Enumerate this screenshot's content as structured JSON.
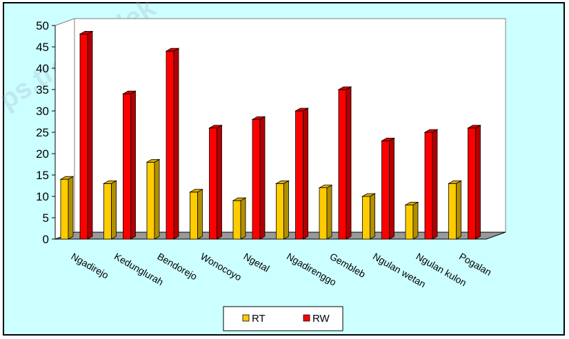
{
  "chart_data": {
    "type": "bar",
    "categories": [
      "Ngadirejo",
      "Kedunglurah",
      "Bendorejo",
      "Wonocoyo",
      "Ngetal",
      "Ngadirenggo",
      "Gembleb",
      "Ngulan wetan",
      "Ngulan kulon",
      "Pogalan"
    ],
    "series": [
      {
        "name": "RT",
        "values": [
          14,
          13,
          18,
          11,
          9,
          13,
          12,
          10,
          8,
          13
        ]
      },
      {
        "name": "RW",
        "values": [
          48,
          34,
          44,
          26,
          28,
          30,
          35,
          23,
          25,
          26
        ]
      }
    ],
    "title": "",
    "xlabel": "",
    "ylabel": "",
    "ylim": [
      0,
      50
    ],
    "yticks": [
      0,
      5,
      10,
      15,
      20,
      25,
      30,
      35,
      40,
      45,
      50
    ],
    "grid": false,
    "legend": "bottom",
    "colors": {
      "RT": "#ffcc00",
      "RW": "#ff0000",
      "plot_wall": "#ffffff",
      "floor": "#999999",
      "background": "#ccffff"
    },
    "watermark": "ps.trenggalek"
  }
}
